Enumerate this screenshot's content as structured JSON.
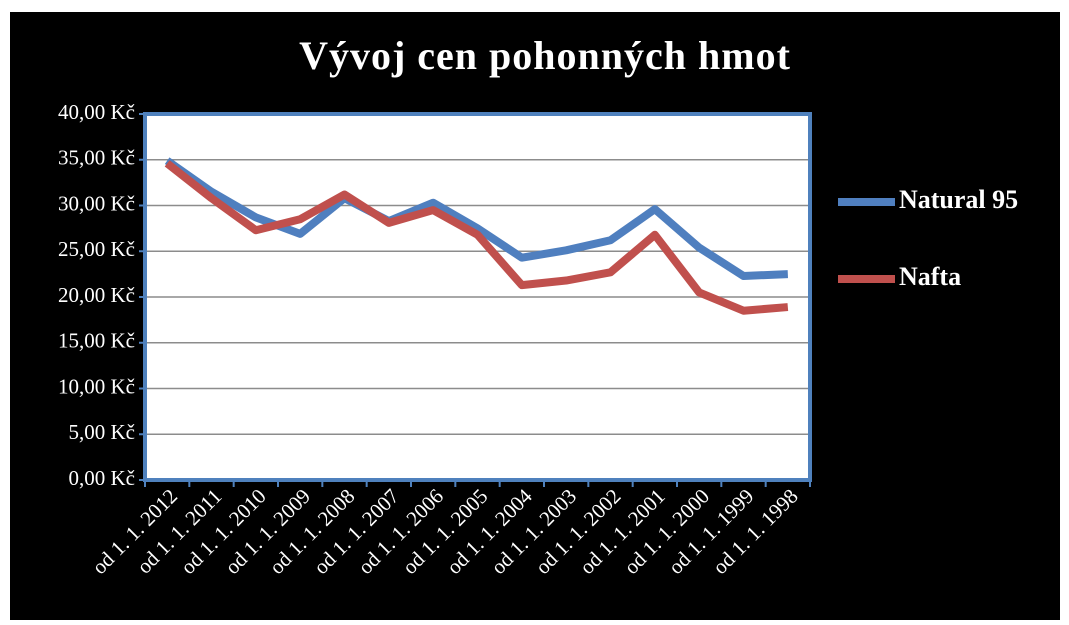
{
  "chart_data": {
    "type": "line",
    "title": "Vývoj cen pohonných hmot",
    "categories": [
      "od 1. 1. 2012",
      "od 1. 1. 2011",
      "od 1. 1. 2010",
      "od 1. 1. 2009",
      "od 1. 1. 2008",
      "od 1. 1. 2007",
      "od 1. 1. 2006",
      "od 1. 1. 2005",
      "od 1. 1. 2004",
      "od 1. 1. 2003",
      "od 1. 1. 2002",
      "od 1. 1. 2001",
      "od 1. 1. 2000",
      "od 1. 1. 1999",
      "od 1. 1. 1998"
    ],
    "series": [
      {
        "name": "Natural 95",
        "color": "#4f7fbf",
        "values": [
          34.9,
          31.5,
          28.7,
          26.9,
          30.8,
          28.3,
          30.3,
          27.5,
          24.3,
          25.1,
          26.2,
          29.6,
          25.4,
          22.3,
          22.5
        ]
      },
      {
        "name": "Nafta",
        "color": "#c0504d",
        "values": [
          34.6,
          30.8,
          27.3,
          28.5,
          31.2,
          28.1,
          29.5,
          26.8,
          21.3,
          21.8,
          22.7,
          26.8,
          20.5,
          18.5,
          18.9
        ]
      }
    ],
    "ylim": [
      0,
      40
    ],
    "yticks": [
      {
        "value": 0,
        "label": "0,00 Kč"
      },
      {
        "value": 5,
        "label": "5,00 Kč"
      },
      {
        "value": 10,
        "label": "10,00 Kč"
      },
      {
        "value": 15,
        "label": "15,00 Kč"
      },
      {
        "value": 20,
        "label": "20,00 Kč"
      },
      {
        "value": 25,
        "label": "25,00 Kč"
      },
      {
        "value": 30,
        "label": "30,00 Kč"
      },
      {
        "value": 35,
        "label": "35,00 Kč"
      },
      {
        "value": 40,
        "label": "40,00 Kč"
      }
    ],
    "grid": true,
    "legend": "right"
  }
}
